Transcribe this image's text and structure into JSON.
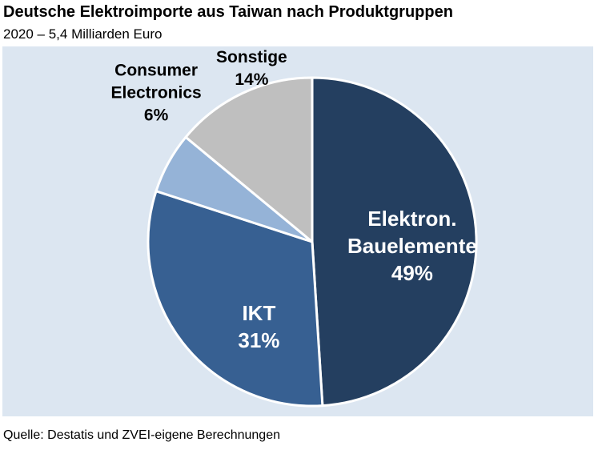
{
  "chart_title": "Deutsche Elektroimporte aus Taiwan nach Produktgruppen",
  "chart_subtitle": "2020 – 5,4 Milliarden Euro",
  "source": "Quelle: Destatis und ZVEI-eigene Berechnungen",
  "colors": {
    "background_panel": "#dce6f1",
    "slice_separator": "#ffffff"
  },
  "chart_data": {
    "type": "pie",
    "title": "Deutsche Elektroimporte aus Taiwan nach Produktgruppen",
    "subtitle": "2020 – 5,4 Milliarden Euro",
    "start_angle_deg": 0,
    "direction": "clockwise",
    "slices": [
      {
        "label_lines": [
          "Elektron.",
          "Bauelemente"
        ],
        "value_label": "49%",
        "value": 49,
        "color": "#243f60",
        "label_color": "#ffffff",
        "label_placement": "inside"
      },
      {
        "label_lines": [
          "IKT"
        ],
        "value_label": "31%",
        "value": 31,
        "color": "#376092",
        "label_color": "#ffffff",
        "label_placement": "inside"
      },
      {
        "label_lines": [
          "Consumer",
          "Electronics"
        ],
        "value_label": "6%",
        "value": 6,
        "color": "#95b3d7",
        "label_color": "#000000",
        "label_placement": "outside"
      },
      {
        "label_lines": [
          "Sonstige"
        ],
        "value_label": "14%",
        "value": 14,
        "color": "#bfbfbf",
        "label_color": "#000000",
        "label_placement": "outside"
      }
    ]
  }
}
